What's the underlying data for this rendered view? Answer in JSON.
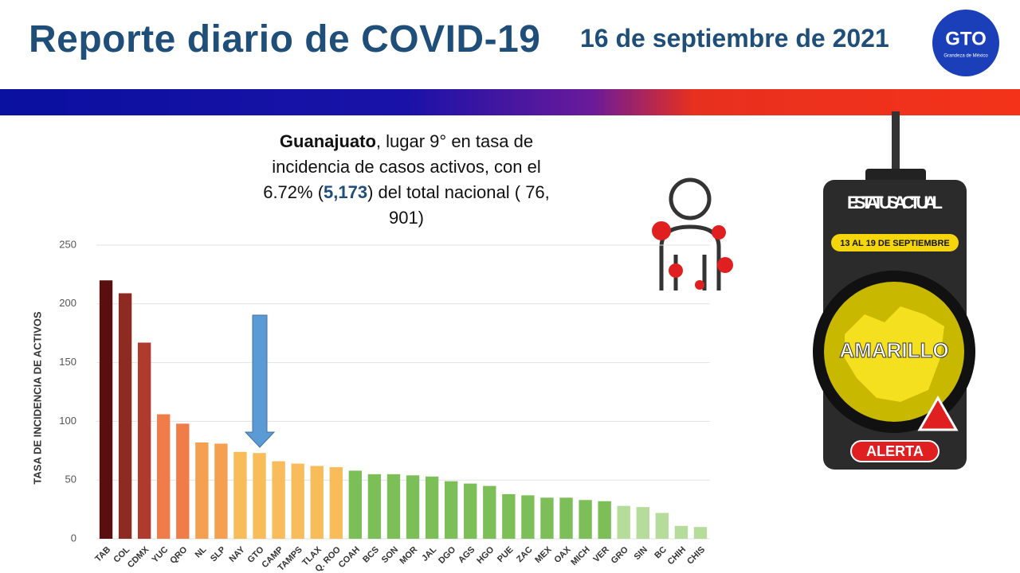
{
  "header": {
    "title": "Reporte diario de COVID-19",
    "date": "16 de septiembre de 2021",
    "logo": "GTO",
    "logo_tagline": "Grandeza de México"
  },
  "summary": [
    {
      "text": "Guanajuato",
      "style": "bold"
    },
    {
      "text": ", lugar 9° en tasa de incidencia de casos activos, con el 6.72% (",
      "style": "normal"
    },
    {
      "text": "5,173",
      "style": "bold-blue"
    },
    {
      "text": ") del total nacional ( 76, 901)",
      "style": "normal"
    }
  ],
  "status": {
    "heading": "ESTATUS ACTUAL",
    "period": "13 AL 19 DE SEPTIEMBRE",
    "level": "AMARILLO",
    "badge": "ALERTA"
  },
  "chart_data": {
    "type": "bar",
    "y_label": "TASA DE INCIDENCIA DE ACTIVOS",
    "categories": [
      "TAB",
      "COL",
      "CDMX",
      "YUC",
      "QRO",
      "NL",
      "SLP",
      "NAY",
      "GTO",
      "CAMP",
      "TAMPS",
      "TLAX",
      "Q. ROO",
      "COAH",
      "BCS",
      "SON",
      "MOR",
      "JAL",
      "DGO",
      "AGS",
      "HGO",
      "PUE",
      "ZAC",
      "MEX",
      "OAX",
      "MICH",
      "VER",
      "GRO",
      "SIN",
      "BC",
      "CHIH",
      "CHIS"
    ],
    "values": [
      220,
      209,
      167,
      106,
      98,
      82,
      81,
      74,
      73,
      66,
      64,
      62,
      61,
      58,
      55,
      55,
      54,
      53,
      49,
      47,
      45,
      38,
      37,
      35,
      35,
      33,
      32,
      28,
      27,
      22,
      11,
      10
    ],
    "colors": [
      "#5a0f0f",
      "#8e2a22",
      "#b03a2e",
      "#f07c4a",
      "#f07c4a",
      "#f5a050",
      "#f5a050",
      "#f9bc5a",
      "#f9bc5a",
      "#f9bc5a",
      "#f9bc5a",
      "#f9bc5a",
      "#f9bc5a",
      "#7cbf58",
      "#7cbf58",
      "#7cbf58",
      "#7cbf58",
      "#7cbf58",
      "#7cbf58",
      "#7cbf58",
      "#7cbf58",
      "#7cbf58",
      "#7cbf58",
      "#7cbf58",
      "#7cbf58",
      "#7cbf58",
      "#7cbf58",
      "#b5dc9a",
      "#b5dc9a",
      "#b5dc9a",
      "#b5dc9a",
      "#b5dc9a"
    ],
    "ylim": [
      0,
      250
    ],
    "yticks": [
      0,
      50,
      100,
      150,
      200,
      250
    ],
    "grid": true
  }
}
